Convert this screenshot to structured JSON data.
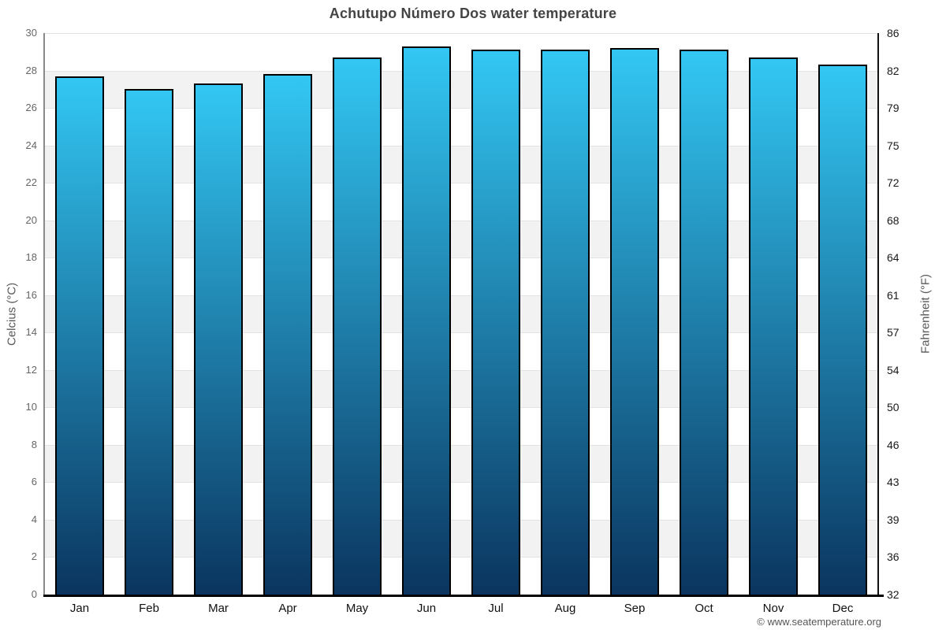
{
  "footer": {
    "copyright": "© www.seatemperature.org"
  },
  "chart_data": {
    "type": "bar",
    "title": "Achutupo Número Dos water temperature",
    "categories": [
      "Jan",
      "Feb",
      "Mar",
      "Apr",
      "May",
      "Jun",
      "Jul",
      "Aug",
      "Sep",
      "Oct",
      "Nov",
      "Dec"
    ],
    "values": [
      27.7,
      27.0,
      27.3,
      27.8,
      28.7,
      29.3,
      29.1,
      29.1,
      29.2,
      29.1,
      28.7,
      28.3
    ],
    "values_unit": "°C",
    "ylabel_left": "Celcius (°C)",
    "ylabel_right": "Fahrenheit (°F)",
    "ylim_celsius": [
      0,
      30
    ],
    "yticks_celsius": [
      0,
      2,
      4,
      6,
      8,
      10,
      12,
      14,
      16,
      18,
      20,
      22,
      24,
      26,
      28,
      30
    ],
    "yticks_fahrenheit": [
      32,
      36,
      39,
      43,
      46,
      50,
      54,
      57,
      61,
      64,
      68,
      72,
      75,
      79,
      82,
      86
    ],
    "legend": "none",
    "grid": "alternating-horizontal-bands-every-2C",
    "colors": {
      "bar_gradient_top": "#33c7f3",
      "bar_gradient_bottom": "#0a355f",
      "bar_border": "#000000",
      "band_gray": "#f2f2f2",
      "band_white": "#ffffff",
      "gridline": "#e3e3e3",
      "title_text": "#444444",
      "axis_label_text": "#575757",
      "tick_left_text": "#666666",
      "tick_right_text": "#1a1a1a",
      "month_text": "#111111",
      "footer_text": "#555555"
    }
  }
}
